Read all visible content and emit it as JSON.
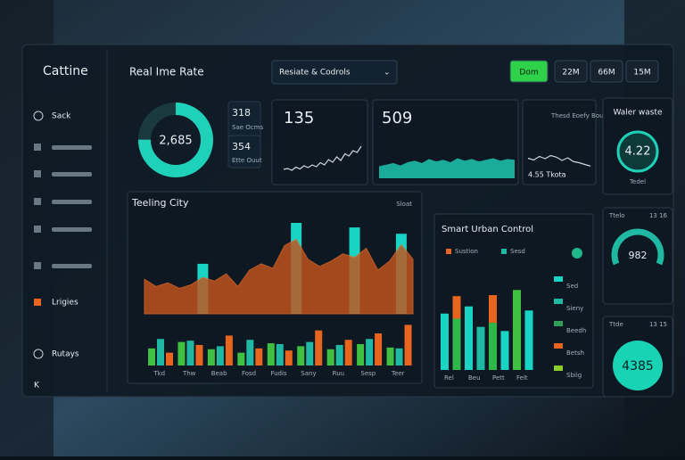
{
  "sidebar": {
    "brand": "Cattine",
    "items": [
      "Sack",
      "Lrigies",
      "Rutays",
      "K"
    ]
  },
  "header": {
    "title": "Real Ime Rate",
    "dropdown": "Resiate & Codrols",
    "tabs": [
      "Dom",
      "22M",
      "66M",
      "15M"
    ]
  },
  "kpis": {
    "donut": "2,685",
    "small": [
      {
        "value": "318",
        "label": "Sae Ocms"
      },
      {
        "value": "354",
        "label": "Ette Ouut"
      }
    ],
    "card_a": {
      "value": "135",
      "line": {
        "values": [
          20,
          22,
          18,
          25,
          21,
          28,
          24,
          30,
          26,
          35,
          30,
          42,
          36,
          48,
          40,
          55,
          50,
          62,
          58,
          72
        ],
        "ylim": [
          0,
          100
        ]
      }
    },
    "card_b": {
      "value": "509",
      "area": {
        "values": [
          30,
          34,
          38,
          32,
          40,
          44,
          38,
          48,
          42,
          46,
          40,
          50,
          44,
          48,
          42,
          46,
          50,
          44,
          48,
          46
        ],
        "ylim": [
          0,
          100
        ]
      }
    },
    "card_c": {
      "title": "Thesd Eoefy Bous",
      "value": "4.55 Tkota",
      "line": {
        "values": [
          50,
          42,
          58,
          48,
          62,
          55,
          40,
          52,
          35,
          30,
          22,
          15
        ],
        "ylim": [
          0,
          100
        ]
      }
    }
  },
  "side_cards": [
    {
      "title": "Waler waste",
      "value": "4.22",
      "label": "Tedel"
    },
    {
      "title": "Ttelo",
      "meta": "13 16",
      "value": "982"
    },
    {
      "title": "Ttde",
      "meta": "13 15",
      "value": "4385"
    }
  ],
  "main_chart": {
    "title": "Teeling City",
    "menu": "Sloat",
    "ylim": [
      0,
      100
    ],
    "area_values": [
      38,
      30,
      34,
      28,
      32,
      40,
      36,
      44,
      30,
      48,
      55,
      50,
      75,
      82,
      60,
      52,
      58,
      66,
      62,
      72,
      48,
      58,
      76,
      60
    ],
    "highlights": [
      null,
      null,
      null,
      null,
      null,
      55,
      null,
      null,
      null,
      null,
      null,
      null,
      null,
      100,
      null,
      null,
      null,
      null,
      95,
      null,
      null,
      null,
      88,
      null
    ],
    "categories": [
      "Tkd",
      "Thw",
      "Beab",
      "Fosd",
      "Fudis",
      "Sany",
      "Ruu",
      "Sesp",
      "Teer"
    ],
    "series": [
      {
        "color": "#3fc040",
        "values": [
          40,
          55,
          38,
          30,
          52,
          45,
          38,
          50,
          42
        ]
      },
      {
        "color": "#1fb8a2",
        "values": [
          62,
          58,
          45,
          60,
          50,
          55,
          48,
          62,
          40
        ]
      },
      {
        "color": "#e8651f",
        "values": [
          30,
          48,
          70,
          40,
          35,
          82,
          60,
          75,
          95
        ]
      }
    ]
  },
  "smart_chart": {
    "title": "Smart Urban Control",
    "legend": [
      {
        "name": "Sustion",
        "color": "#e8651f"
      },
      {
        "name": "Sesd",
        "color": "#1fb8a2"
      }
    ],
    "side_legend": [
      {
        "name": "Sed",
        "color": "#19d3c5"
      },
      {
        "name": "Sieny",
        "color": "#1fb8a2"
      },
      {
        "name": "Beedh",
        "color": "#2e9e5a"
      },
      {
        "name": "Betsh",
        "color": "#e8651f"
      },
      {
        "name": "Sbiig",
        "color": "#8ccf2a"
      }
    ],
    "categories": [
      "Rel",
      null,
      "Beu",
      null,
      "Pett",
      null,
      "Felt",
      null
    ],
    "ylim": [
      0,
      100
    ],
    "base": [
      55,
      50,
      62,
      42,
      46,
      38,
      78,
      58
    ],
    "top": [
      0,
      22,
      0,
      0,
      27,
      0,
      0,
      0
    ]
  }
}
